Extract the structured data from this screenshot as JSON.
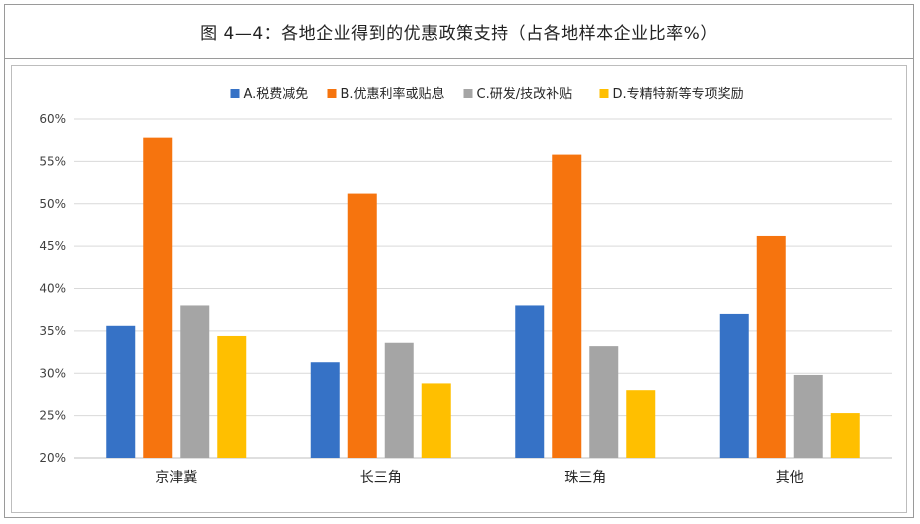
{
  "figure_title": "图 4—4：各地企业得到的优惠政策支持（占各地样本企业比率%）",
  "chart_data": {
    "type": "bar",
    "title": "",
    "xlabel": "",
    "ylabel": "",
    "ylim": [
      20,
      60
    ],
    "yticks": [
      "20%",
      "25%",
      "30%",
      "35%",
      "40%",
      "45%",
      "50%",
      "55%",
      "60%"
    ],
    "grid": true,
    "legend_position": "top-center",
    "categories": [
      "京津冀",
      "长三角",
      "珠三角",
      "其他"
    ],
    "series": [
      {
        "name": "A.税费减免",
        "color": "#3672c6",
        "values": [
          35.6,
          31.3,
          38.0,
          37.0
        ]
      },
      {
        "name": "B.优惠利率或贴息",
        "color": "#f6740e",
        "values": [
          57.8,
          51.2,
          55.8,
          46.2
        ]
      },
      {
        "name": "C.研发/技改补贴",
        "color": "#a5a5a5",
        "values": [
          38.0,
          33.6,
          33.2,
          29.8
        ]
      },
      {
        "name": "D.专精特新等专项奖励",
        "color": "#ffbf00",
        "values": [
          34.4,
          28.8,
          28.0,
          25.3
        ]
      }
    ]
  }
}
